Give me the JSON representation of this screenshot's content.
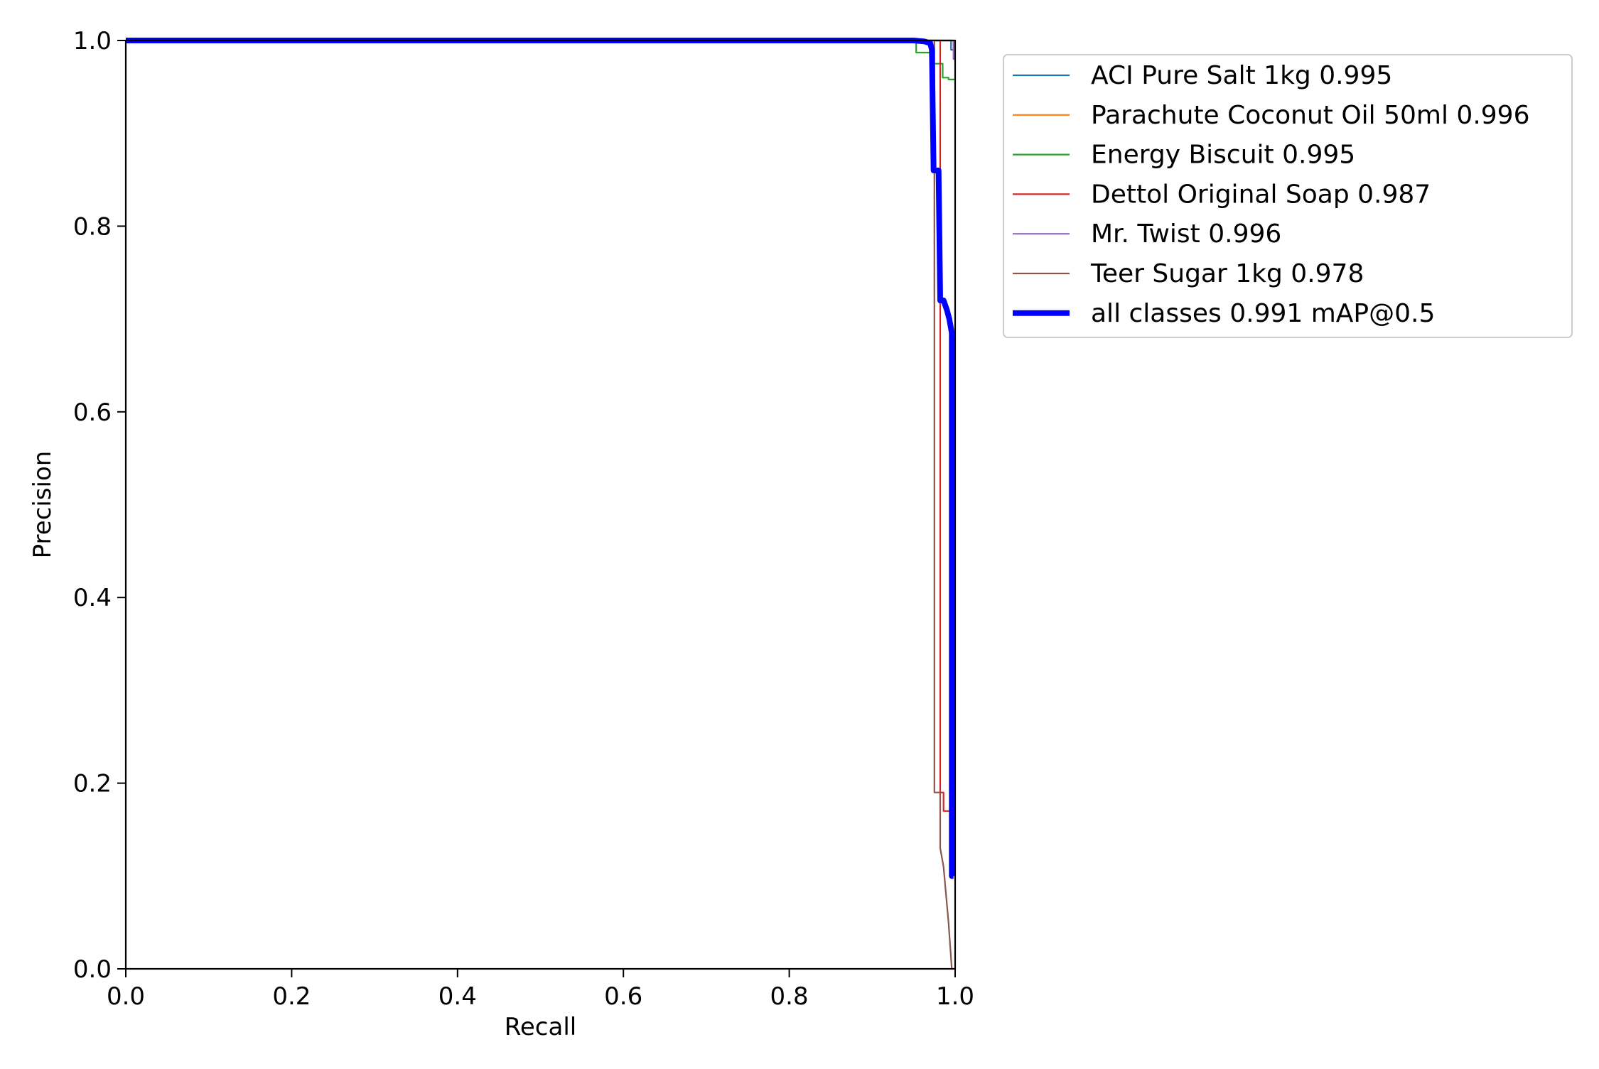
{
  "chart_data": {
    "type": "line",
    "title": "",
    "xlabel": "Recall",
    "ylabel": "Precision",
    "xlim": [
      0,
      1
    ],
    "ylim": [
      0,
      1
    ],
    "grid": false,
    "legend_position": "outside-top-right",
    "x_ticks": [
      {
        "value": 0.0,
        "label": "0.0"
      },
      {
        "value": 0.2,
        "label": "0.2"
      },
      {
        "value": 0.4,
        "label": "0.4"
      },
      {
        "value": 0.6,
        "label": "0.6"
      },
      {
        "value": 0.8,
        "label": "0.8"
      },
      {
        "value": 1.0,
        "label": "1.0"
      }
    ],
    "y_ticks": [
      {
        "value": 0.0,
        "label": "0.0"
      },
      {
        "value": 0.2,
        "label": "0.2"
      },
      {
        "value": 0.4,
        "label": "0.4"
      },
      {
        "value": 0.6,
        "label": "0.6"
      },
      {
        "value": 0.8,
        "label": "0.8"
      },
      {
        "value": 1.0,
        "label": "1.0"
      }
    ],
    "series": [
      {
        "name": "ACI Pure Salt 1kg 0.995",
        "color": "#1f77b4",
        "emphasis": false,
        "x": [
          0.0,
          0.995,
          0.995,
          1.0
        ],
        "y": [
          1.0,
          1.0,
          0.99,
          0.99
        ]
      },
      {
        "name": "Parachute Coconut Oil 50ml 0.996",
        "color": "#ff7f0e",
        "emphasis": false,
        "x": [
          0.0,
          0.998,
          0.998,
          1.0
        ],
        "y": [
          1.0,
          1.0,
          0.99,
          0.99
        ]
      },
      {
        "name": "Energy Biscuit 0.995",
        "color": "#2ca02c",
        "emphasis": false,
        "x": [
          0.0,
          0.953,
          0.953,
          0.97,
          0.97,
          0.985,
          0.985,
          0.992,
          0.992,
          1.0
        ],
        "y": [
          1.0,
          1.0,
          0.987,
          0.987,
          0.975,
          0.975,
          0.96,
          0.96,
          0.958,
          0.958
        ]
      },
      {
        "name": "Dettol Original Soap 0.987",
        "color": "#d62728",
        "emphasis": false,
        "x": [
          0.0,
          0.982,
          0.982,
          0.986,
          0.986,
          1.0
        ],
        "y": [
          1.0,
          1.0,
          0.19,
          0.19,
          0.17,
          0.17
        ]
      },
      {
        "name": "Mr. Twist 0.996",
        "color": "#9467bd",
        "emphasis": false,
        "x": [
          0.0,
          0.998,
          0.998,
          1.0
        ],
        "y": [
          1.0,
          1.0,
          0.98,
          0.98
        ]
      },
      {
        "name": "Teer Sugar 1kg 0.978",
        "color": "#8c564b",
        "emphasis": false,
        "x": [
          0.0,
          0.975,
          0.975,
          0.982,
          0.982,
          0.986,
          0.988,
          0.992,
          0.996
        ],
        "y": [
          1.0,
          1.0,
          0.19,
          0.19,
          0.13,
          0.11,
          0.09,
          0.05,
          0.0
        ]
      },
      {
        "name": "all classes 0.991 mAP@0.5",
        "color": "#0000ff",
        "emphasis": true,
        "x": [
          0.0,
          0.95,
          0.963,
          0.97,
          0.972,
          0.974,
          0.976,
          0.978,
          0.98,
          0.982,
          0.984,
          0.986,
          0.99,
          0.993,
          0.996,
          0.996,
          0.998
        ],
        "y": [
          1.0,
          1.0,
          0.999,
          0.997,
          0.99,
          0.86,
          0.86,
          0.86,
          0.86,
          0.72,
          0.72,
          0.72,
          0.71,
          0.7,
          0.685,
          0.1,
          0.1
        ]
      }
    ]
  }
}
